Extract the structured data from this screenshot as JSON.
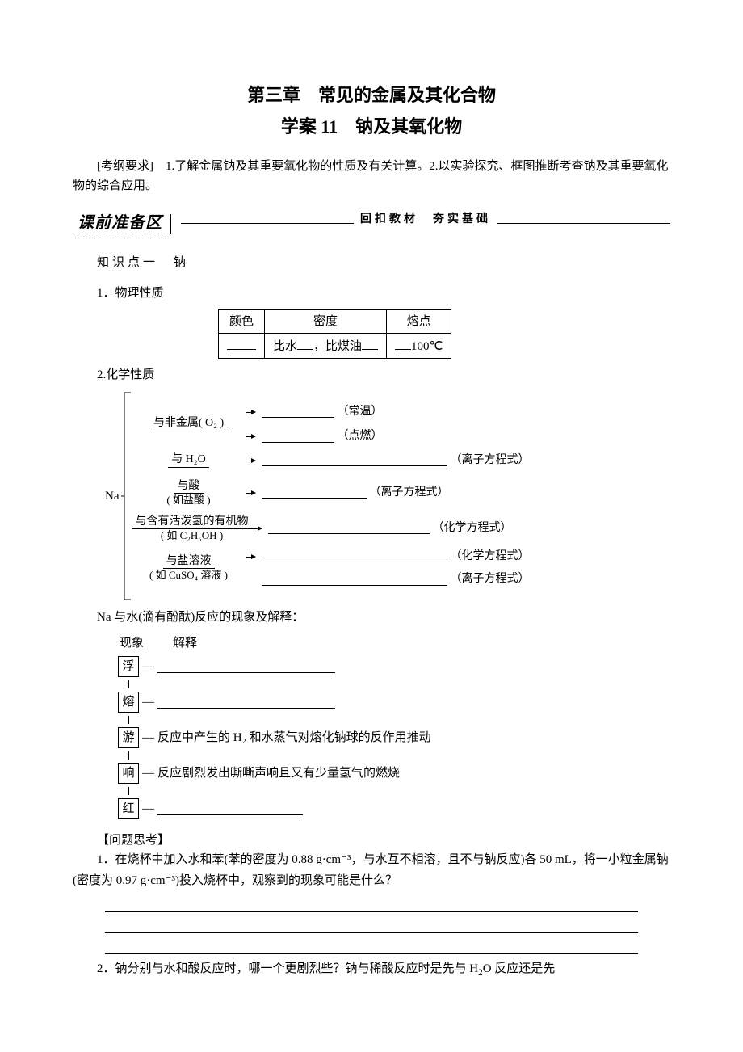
{
  "chapter_title": "第三章　常见的金属及其化合物",
  "lesson_title": "学案 11　钠及其氧化物",
  "outline": "[考纲要求]　1.了解金属钠及其重要氧化物的性质及有关计算。2.以实验探究、框图推断考查钠及其重要氧化物的综合应用。",
  "section_bar": {
    "badge": "课前准备区",
    "subtitle": "回扣教材　夯实基础"
  },
  "kp1": "知识点一　钠",
  "phys_heading": "1．物理性质",
  "phys_table": {
    "headers": [
      "颜色",
      "密度",
      "熔点"
    ],
    "row": {
      "col1": "",
      "col2_prefix": "比水",
      "col2_mid": "，比煤油",
      "col3_prefix": "",
      "col3_suffix": "100℃"
    }
  },
  "chem_heading": "2.化学性质",
  "na_label": "Na",
  "chem_rows": [
    {
      "label": "与非金属( O₂ )",
      "note1": "（常温）",
      "note2": "（点燃）",
      "blank_w": 90
    },
    {
      "label": "与 H₂O",
      "note1": "（离子方程式）",
      "blank_w": 230
    },
    {
      "label": "与酸",
      "sublabel": "( 如盐酸 )",
      "note1": "（离子方程式）",
      "blank_w": 130
    },
    {
      "label": "与含有活泼氢的有机物",
      "sublabel": "( 如 C₂H₅OH )",
      "note1": "（化学方程式）",
      "blank_w": 200
    },
    {
      "label": "与盐溶液",
      "sublabel": "( 如 CuSO₄ 溶液 )",
      "note1": "（化学方程式）",
      "note2": "（离子方程式）",
      "blank_w": 230
    }
  ],
  "phenom_intro": "Na 与水(滴有酚酞)反应的现象及解释：",
  "phenom_headers": {
    "left": "现象",
    "right": "解释"
  },
  "phenom": [
    {
      "char": "浮",
      "text": "",
      "blank": true,
      "blank_w": 220
    },
    {
      "char": "熔",
      "text": "",
      "blank": true,
      "blank_w": 220
    },
    {
      "char": "游",
      "text": "反应中产生的 H₂ 和水蒸气对熔化钠球的反作用推动",
      "blank": false
    },
    {
      "char": "响",
      "text": "反应剧烈发出嘶嘶声响且又有少量氢气的燃烧",
      "blank": false
    },
    {
      "char": "红",
      "text": "",
      "blank": true,
      "blank_w": 180
    }
  ],
  "question_heading": "【问题思考】",
  "q1": "1．在烧杯中加入水和苯(苯的密度为 0.88 g·cm⁻³，与水互不相溶，且不与钠反应)各 50 mL，将一小粒金属钠(密度为 0.97 g·cm⁻³)投入烧杯中，观察到的现象可能是什么？",
  "q2": "2．钠分别与水和酸反应时，哪一个更剧烈些？钠与稀酸反应时是先与 H",
  "q2_sub": "2",
  "q2_tail": "O 反应还是先"
}
